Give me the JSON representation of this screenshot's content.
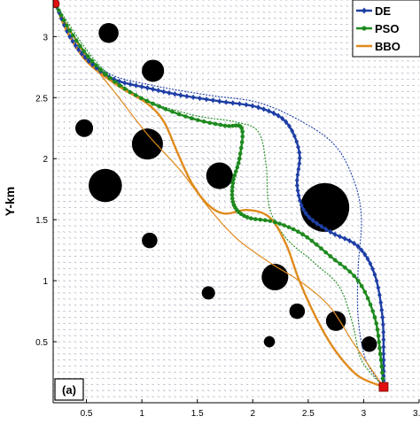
{
  "chart_data": {
    "type": "line",
    "title": "",
    "xlabel": "",
    "ylabel": "Y-km",
    "panel_label": "(a)",
    "xlim": [
      0.2,
      3.5
    ],
    "ylim": [
      0.0,
      3.3
    ],
    "x_ticks": [
      "0.5",
      "1",
      "1.5",
      "2",
      "2.5",
      "3",
      "3.5"
    ],
    "x_tick_values": [
      0.5,
      1.0,
      1.5,
      2.0,
      2.5,
      3.0,
      3.5
    ],
    "y_ticks": [
      "0.5",
      "1",
      "1.5",
      "2",
      "2.5",
      "3"
    ],
    "y_tick_values": [
      0.5,
      1.0,
      1.5,
      2.0,
      2.5,
      3.0
    ],
    "start": {
      "x": 0.22,
      "y": 3.27,
      "color": "#e01010"
    },
    "goal": {
      "x": 3.18,
      "y": 0.13,
      "color": "#e01010"
    },
    "legend_position": "top-right",
    "series": [
      {
        "name": "DE",
        "color": "#1f3fa6",
        "marker": "diamond",
        "points": [
          [
            0.22,
            3.27
          ],
          [
            0.35,
            3.0
          ],
          [
            0.52,
            2.8
          ],
          [
            0.75,
            2.65
          ],
          [
            1.05,
            2.58
          ],
          [
            1.35,
            2.52
          ],
          [
            1.7,
            2.47
          ],
          [
            2.05,
            2.42
          ],
          [
            2.3,
            2.3
          ],
          [
            2.42,
            2.05
          ],
          [
            2.4,
            1.78
          ],
          [
            2.48,
            1.55
          ],
          [
            2.7,
            1.4
          ],
          [
            2.95,
            1.28
          ],
          [
            3.1,
            1.05
          ],
          [
            3.17,
            0.7
          ],
          [
            3.18,
            0.35
          ],
          [
            3.18,
            0.13
          ]
        ]
      },
      {
        "name": "DE-alt",
        "color": "#1f3fa6",
        "marker": "none",
        "dashed": true,
        "points": [
          [
            0.22,
            3.27
          ],
          [
            0.4,
            2.95
          ],
          [
            0.7,
            2.7
          ],
          [
            1.1,
            2.6
          ],
          [
            1.6,
            2.52
          ],
          [
            2.05,
            2.46
          ],
          [
            2.45,
            2.3
          ],
          [
            2.75,
            2.1
          ],
          [
            2.92,
            1.8
          ],
          [
            2.98,
            1.5
          ],
          [
            2.95,
            1.1
          ],
          [
            2.95,
            0.7
          ],
          [
            3.02,
            0.35
          ],
          [
            3.18,
            0.13
          ]
        ]
      },
      {
        "name": "PSO",
        "color": "#1e8a1e",
        "marker": "dot",
        "points": [
          [
            0.22,
            3.27
          ],
          [
            0.35,
            3.05
          ],
          [
            0.55,
            2.8
          ],
          [
            0.8,
            2.6
          ],
          [
            1.1,
            2.45
          ],
          [
            1.45,
            2.33
          ],
          [
            1.75,
            2.27
          ],
          [
            1.9,
            2.25
          ],
          [
            1.88,
            2.0
          ],
          [
            1.82,
            1.8
          ],
          [
            1.83,
            1.62
          ],
          [
            1.95,
            1.52
          ],
          [
            2.2,
            1.48
          ],
          [
            2.45,
            1.38
          ],
          [
            2.7,
            1.2
          ],
          [
            2.95,
            1.0
          ],
          [
            3.1,
            0.7
          ],
          [
            3.15,
            0.4
          ],
          [
            3.18,
            0.13
          ]
        ]
      },
      {
        "name": "PSO-alt",
        "color": "#1e8a1e",
        "marker": "none",
        "dashed": true,
        "points": [
          [
            0.22,
            3.27
          ],
          [
            0.6,
            2.78
          ],
          [
            1.0,
            2.5
          ],
          [
            1.45,
            2.36
          ],
          [
            1.85,
            2.3
          ],
          [
            2.05,
            2.22
          ],
          [
            2.12,
            1.95
          ],
          [
            2.15,
            1.6
          ],
          [
            2.3,
            1.35
          ],
          [
            2.55,
            1.15
          ],
          [
            2.78,
            0.95
          ],
          [
            2.9,
            0.65
          ],
          [
            2.98,
            0.35
          ],
          [
            3.18,
            0.13
          ]
        ]
      },
      {
        "name": "BBO",
        "color": "#e08a1c",
        "marker": "none",
        "points": [
          [
            0.22,
            3.27
          ],
          [
            0.32,
            3.05
          ],
          [
            0.5,
            2.8
          ],
          [
            0.78,
            2.6
          ],
          [
            1.05,
            2.45
          ],
          [
            1.2,
            2.3
          ],
          [
            1.32,
            2.05
          ],
          [
            1.45,
            1.8
          ],
          [
            1.6,
            1.62
          ],
          [
            1.75,
            1.55
          ],
          [
            1.95,
            1.58
          ],
          [
            2.15,
            1.52
          ],
          [
            2.3,
            1.3
          ],
          [
            2.42,
            1.0
          ],
          [
            2.58,
            0.68
          ],
          [
            2.75,
            0.42
          ],
          [
            2.95,
            0.22
          ],
          [
            3.18,
            0.13
          ]
        ]
      },
      {
        "name": "BBO-alt",
        "color": "#e08a1c",
        "marker": "none",
        "thin": true,
        "points": [
          [
            0.22,
            3.27
          ],
          [
            0.45,
            2.9
          ],
          [
            0.75,
            2.55
          ],
          [
            1.05,
            2.2
          ],
          [
            1.35,
            1.9
          ],
          [
            1.6,
            1.6
          ],
          [
            1.85,
            1.35
          ],
          [
            2.15,
            1.15
          ],
          [
            2.45,
            0.98
          ],
          [
            2.7,
            0.78
          ],
          [
            2.9,
            0.5
          ],
          [
            3.05,
            0.3
          ],
          [
            3.18,
            0.13
          ]
        ]
      }
    ],
    "legend": [
      {
        "label": "DE",
        "color": "#1f3fa6"
      },
      {
        "label": "PSO",
        "color": "#1e8a1e"
      },
      {
        "label": "BBO",
        "color": "#e08a1c"
      }
    ],
    "obstacles": [
      {
        "x": 0.7,
        "y": 3.03,
        "r": 0.09
      },
      {
        "x": 1.1,
        "y": 2.72,
        "r": 0.1
      },
      {
        "x": 0.48,
        "y": 2.25,
        "r": 0.08
      },
      {
        "x": 1.05,
        "y": 2.12,
        "r": 0.14
      },
      {
        "x": 0.67,
        "y": 1.78,
        "r": 0.15
      },
      {
        "x": 1.7,
        "y": 1.86,
        "r": 0.12
      },
      {
        "x": 2.65,
        "y": 1.6,
        "r": 0.22
      },
      {
        "x": 1.07,
        "y": 1.33,
        "r": 0.07
      },
      {
        "x": 2.2,
        "y": 1.03,
        "r": 0.12
      },
      {
        "x": 1.6,
        "y": 0.9,
        "r": 0.06
      },
      {
        "x": 2.4,
        "y": 0.75,
        "r": 0.07
      },
      {
        "x": 2.75,
        "y": 0.67,
        "r": 0.09
      },
      {
        "x": 2.15,
        "y": 0.5,
        "r": 0.05
      },
      {
        "x": 3.05,
        "y": 0.48,
        "r": 0.07
      }
    ],
    "vortices": [
      {
        "x": 1.2,
        "y": 2.55,
        "strength": 1.0
      },
      {
        "x": 0.5,
        "y": 2.4,
        "strength": -0.6
      },
      {
        "x": 1.45,
        "y": 1.75,
        "strength": -0.7
      },
      {
        "x": 1.9,
        "y": 2.0,
        "strength": 0.5
      },
      {
        "x": 1.65,
        "y": 1.05,
        "strength": 0.6
      },
      {
        "x": 2.25,
        "y": 1.45,
        "strength": -0.4
      }
    ]
  }
}
